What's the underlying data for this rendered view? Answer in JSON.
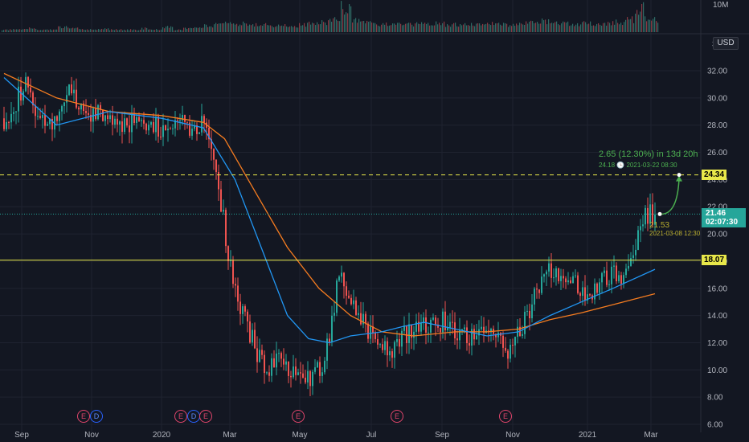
{
  "chart_data": {
    "type": "candlestick",
    "currency_label": "USD",
    "y_ticks": [
      "32.00",
      "30.00",
      "28.00",
      "26.00",
      "24.00",
      "22.00",
      "20.00",
      "18.00",
      "16.00",
      "14.00",
      "12.00",
      "10.00",
      "8.00",
      "6.00"
    ],
    "ylim": [
      6,
      34
    ],
    "volume_axis_label": "10M",
    "x_axis_labels": [
      "Sep",
      "Nov",
      "2020",
      "Mar",
      "May",
      "Jul",
      "Sep",
      "Nov",
      "2021",
      "Mar"
    ],
    "horizontal_levels": [
      {
        "value": 24.34,
        "label": "24.34",
        "style": "dashed",
        "color": "#e8e84a"
      },
      {
        "value": 18.07,
        "label": "18.07",
        "style": "solid",
        "color": "#e8e84a"
      }
    ],
    "last_price": {
      "value": 21.46,
      "label": "21.46",
      "countdown": "02:07:30"
    },
    "projection": {
      "text": "2.65 (12.30%) in 13d 20h",
      "target_price": "24.18",
      "target_time": "2021-03-22  08:30",
      "from_price": "21.53",
      "from_time": "2021-03-08 12:30"
    },
    "event_markers": [
      {
        "letter": "E",
        "kind": "earnings"
      },
      {
        "letter": "D",
        "kind": "dividend"
      },
      {
        "letter": "E",
        "kind": "earnings"
      },
      {
        "letter": "D",
        "kind": "dividend"
      },
      {
        "letter": "E",
        "kind": "earnings"
      },
      {
        "letter": "E",
        "kind": "earnings"
      },
      {
        "letter": "E",
        "kind": "earnings"
      },
      {
        "letter": "E",
        "kind": "earnings"
      }
    ],
    "price_path": [
      [
        0,
        28.5
      ],
      [
        1,
        29.5
      ],
      [
        2,
        31.0
      ],
      [
        3,
        29.0
      ],
      [
        4,
        27.5
      ],
      [
        5,
        28.5
      ],
      [
        6,
        30.5
      ],
      [
        7,
        29.5
      ],
      [
        8,
        28.5
      ],
      [
        9,
        29.0
      ],
      [
        10,
        28.5
      ],
      [
        11,
        28.0
      ],
      [
        12,
        28.3
      ],
      [
        13,
        28.0
      ],
      [
        14,
        28.5
      ],
      [
        15,
        27.5
      ],
      [
        16,
        28.0
      ],
      [
        17,
        29.0
      ],
      [
        18,
        27.5
      ],
      [
        19,
        28.5
      ],
      [
        20,
        26.0
      ],
      [
        21,
        20.5
      ],
      [
        22,
        15.5
      ],
      [
        23,
        13.5
      ],
      [
        24,
        11.5
      ],
      [
        25,
        10.0
      ],
      [
        26,
        11.0
      ],
      [
        27,
        10.0
      ],
      [
        28,
        10.5
      ],
      [
        29,
        9.5
      ],
      [
        30,
        10.0
      ],
      [
        31,
        12.0
      ],
      [
        32,
        18.0
      ],
      [
        33,
        15.0
      ],
      [
        34,
        14.0
      ],
      [
        35,
        12.5
      ],
      [
        36,
        12.0
      ],
      [
        37,
        11.5
      ],
      [
        38,
        12.5
      ],
      [
        39,
        13.0
      ],
      [
        40,
        13.5
      ],
      [
        41,
        13.5
      ],
      [
        42,
        13.5
      ],
      [
        43,
        13.0
      ],
      [
        44,
        12.5
      ],
      [
        45,
        12.5
      ],
      [
        46,
        13.5
      ],
      [
        47,
        12.0
      ],
      [
        48,
        11.5
      ],
      [
        49,
        12.5
      ],
      [
        50,
        14.5
      ],
      [
        51,
        16.0
      ],
      [
        52,
        17.5
      ],
      [
        53,
        17.0
      ],
      [
        54,
        16.5
      ],
      [
        55,
        16.0
      ],
      [
        56,
        15.5
      ],
      [
        57,
        16.5
      ],
      [
        58,
        17.0
      ],
      [
        59,
        17.0
      ],
      [
        60,
        19.0
      ],
      [
        61,
        21.5
      ],
      [
        62,
        21.46
      ]
    ],
    "ma_blue_path": [
      [
        0,
        31.5
      ],
      [
        5,
        28.0
      ],
      [
        10,
        29.0
      ],
      [
        15,
        28.5
      ],
      [
        19,
        27.8
      ],
      [
        22,
        24.0
      ],
      [
        25,
        18.0
      ],
      [
        27,
        14.0
      ],
      [
        29,
        12.3
      ],
      [
        31,
        12.0
      ],
      [
        33,
        12.5
      ],
      [
        36,
        12.8
      ],
      [
        38,
        13.2
      ],
      [
        40,
        13.5
      ],
      [
        43,
        13.0
      ],
      [
        46,
        12.5
      ],
      [
        49,
        12.8
      ],
      [
        52,
        14.0
      ],
      [
        55,
        15.0
      ],
      [
        58,
        16.0
      ],
      [
        62,
        17.4
      ]
    ],
    "ma_orange_path": [
      [
        0,
        31.8
      ],
      [
        5,
        30.0
      ],
      [
        10,
        29.0
      ],
      [
        15,
        28.7
      ],
      [
        19,
        28.2
      ],
      [
        21,
        27.0
      ],
      [
        24,
        23.0
      ],
      [
        27,
        19.0
      ],
      [
        30,
        16.0
      ],
      [
        33,
        14.0
      ],
      [
        36,
        12.8
      ],
      [
        39,
        12.5
      ],
      [
        43,
        12.8
      ],
      [
        46,
        12.8
      ],
      [
        49,
        13.0
      ],
      [
        52,
        13.7
      ],
      [
        55,
        14.2
      ],
      [
        58,
        14.8
      ],
      [
        62,
        15.6
      ]
    ],
    "volume_profile": [
      0.1,
      0.1,
      0.15,
      0.1,
      0.1,
      0.2,
      0.15,
      0.1,
      0.1,
      0.15,
      0.1,
      0.1,
      0.1,
      0.15,
      0.1,
      0.2,
      0.1,
      0.15,
      0.2,
      0.25,
      0.35,
      0.4,
      0.35,
      0.3,
      0.3,
      0.25,
      0.3,
      0.25,
      0.3,
      0.35,
      0.4,
      0.5,
      1.0,
      0.45,
      0.4,
      0.3,
      0.35,
      0.3,
      0.3,
      0.35,
      0.3,
      0.35,
      0.3,
      0.3,
      0.3,
      0.3,
      0.35,
      0.3,
      0.3,
      0.35,
      0.4,
      0.45,
      0.4,
      0.35,
      0.3,
      0.35,
      0.3,
      0.35,
      0.4,
      0.5,
      0.95,
      0.5,
      0.4
    ]
  }
}
